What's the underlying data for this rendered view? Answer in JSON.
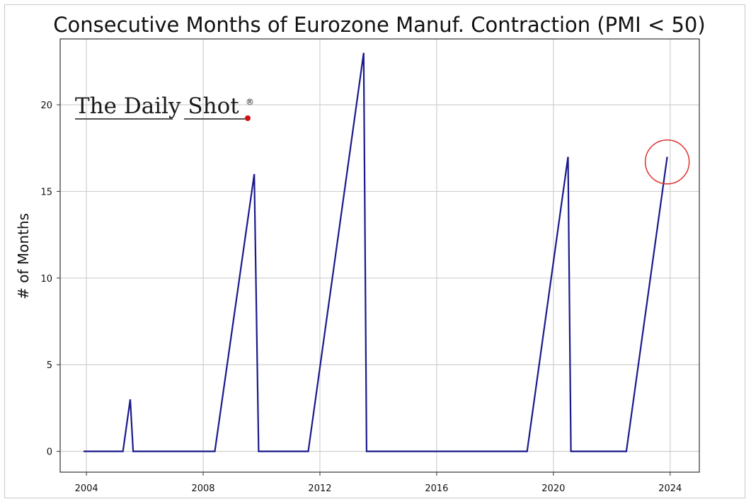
{
  "chart_data": {
    "type": "line",
    "title": "Consecutive Months of Eurozone Manuf. Contraction (PMI < 50)",
    "xlabel": "",
    "ylabel": "# of Months",
    "xlim": [
      2003.1,
      2025.0
    ],
    "ylim": [
      -1.2,
      23.8
    ],
    "x_ticks": [
      {
        "value": 2004,
        "label": "2004"
      },
      {
        "value": 2008,
        "label": "2008"
      },
      {
        "value": 2012,
        "label": "2012"
      },
      {
        "value": 2016,
        "label": "2016"
      },
      {
        "value": 2020,
        "label": "2020"
      },
      {
        "value": 2024,
        "label": "2024"
      }
    ],
    "y_ticks": [
      {
        "value": 0,
        "label": "0"
      },
      {
        "value": 5,
        "label": "5"
      },
      {
        "value": 10,
        "label": "10"
      },
      {
        "value": 15,
        "label": "15"
      },
      {
        "value": 20,
        "label": "20"
      }
    ],
    "grid": true,
    "line_color": "#1a1a8c",
    "series": [
      {
        "points": [
          [
            2003.9,
            0
          ],
          [
            2005.25,
            0
          ],
          [
            2005.5,
            3
          ],
          [
            2005.6,
            0
          ],
          [
            2008.4,
            0
          ],
          [
            2009.75,
            16
          ],
          [
            2009.9,
            0
          ],
          [
            2011.6,
            0
          ],
          [
            2013.5,
            23
          ],
          [
            2013.6,
            0
          ],
          [
            2019.1,
            0
          ],
          [
            2020.5,
            17
          ],
          [
            2020.6,
            0
          ],
          [
            2022.5,
            0
          ],
          [
            2023.9,
            17
          ]
        ]
      }
    ],
    "annotations": [
      {
        "type": "circle",
        "x": 2023.9,
        "y": 16.7,
        "color": "#e03030"
      }
    ]
  },
  "watermark": {
    "text": "The Daily Shot",
    "registered": "®",
    "dot_color": "#d01010"
  }
}
